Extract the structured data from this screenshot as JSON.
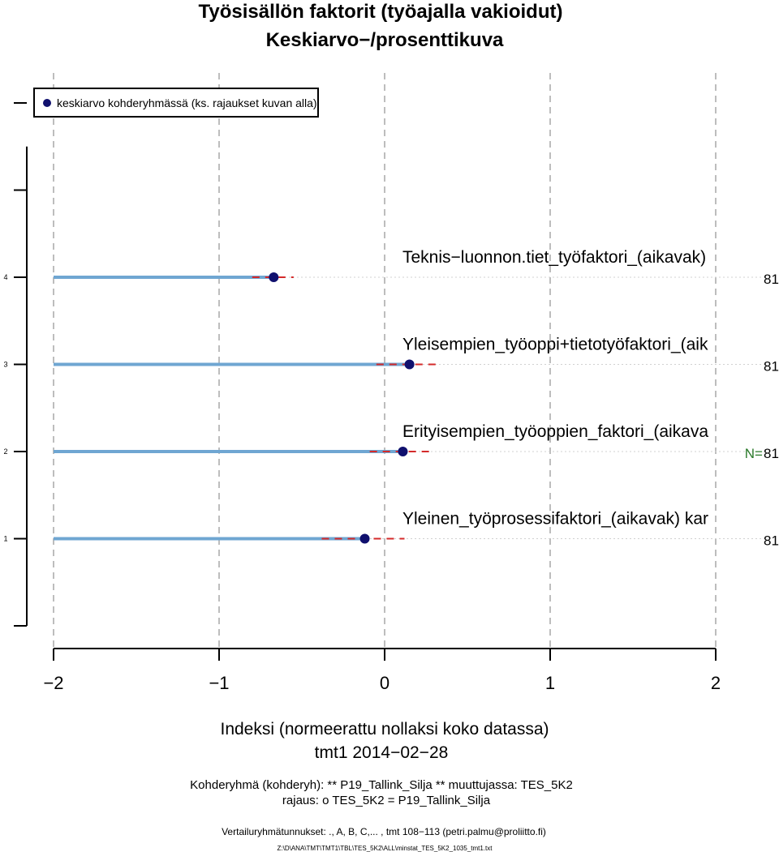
{
  "chart_data": {
    "type": "scatter",
    "title": "Työsisällön faktorit (työajalla vakioidut)",
    "subtitle": "Keskiarvo−/prosenttikuva",
    "xlabel": "Indeksi (normeerattu nollaksi koko datassa)",
    "xlabel2": "tmt1 2014−02−28",
    "xlim": [
      -2,
      2
    ],
    "ylim": [
      0,
      5
    ],
    "x_ticks": [
      -2,
      -1,
      0,
      1,
      2
    ],
    "x_tick_labels": [
      "−2",
      "−1",
      "0",
      "1",
      "2"
    ],
    "y_ticks": [
      1,
      2,
      3,
      4
    ],
    "y_tick_labels": [
      "1",
      "2",
      "3",
      "4"
    ],
    "grid": "vertical dashed",
    "legend": {
      "placement": "top-left",
      "entries": [
        "keskiarvo kohderyhmässä (ks. rajaukset kuvan alla)"
      ]
    },
    "n_prefix": "N=",
    "colors": {
      "point": "#10106e",
      "bar": "#6fa6d2",
      "interval": "#d42a2a",
      "n_label": "#2a7a2a",
      "grid": "#bdbdbd"
    },
    "series": [
      {
        "row": 4,
        "label": "Teknis−luonnon.tiet_työfaktori_(aikavak)",
        "mean": -0.67,
        "ci": [
          -0.8,
          -0.55
        ],
        "n": "81",
        "show_n_prefix": false
      },
      {
        "row": 3,
        "label": "Yleisempien_työoppi+tietotyöfaktori_(aik",
        "mean": 0.15,
        "ci": [
          -0.05,
          0.33
        ],
        "n": "81",
        "show_n_prefix": false
      },
      {
        "row": 2,
        "label": "Erityisempien_työoppien_faktori_(aikava",
        "mean": 0.11,
        "ci": [
          -0.09,
          0.3
        ],
        "n": "81",
        "show_n_prefix": true
      },
      {
        "row": 1,
        "label": "Yleinen_työprosessifaktori_(aikavak) kar",
        "mean": -0.12,
        "ci": [
          -0.38,
          0.12
        ],
        "n": "81",
        "show_n_prefix": false
      }
    ]
  },
  "footer": {
    "line1": "Kohderyhmä (kohderyh): ** P19_Tallink_Silja ** muuttujassa:  TES_5K2",
    "line2": "rajaus:  o TES_5K2 = P19_Tallink_Silja",
    "line3": "Vertailuryhmätunnukset: ., A, B, C,...   , tmt 108−113 (petri.palmu@proliitto.fi)",
    "line4": "Z:\\D\\ANA\\TMT\\TMT1\\TBL\\TES_5K2\\ALL\\minstat_TES_5K2_1035_tmt1.txt"
  }
}
